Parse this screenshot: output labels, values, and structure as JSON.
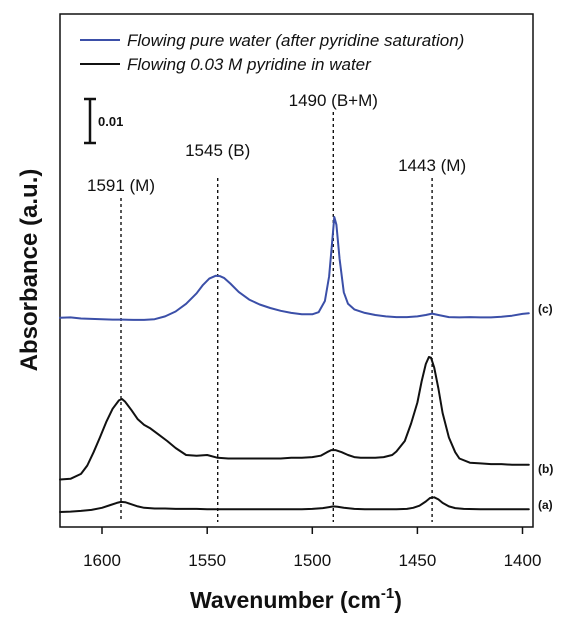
{
  "chart_data": {
    "type": "line",
    "xlabel": "Wavenumber (cm",
    "xlabel_sup": "-1",
    "xlabel_close": ")",
    "ylabel": "Absorbance (a.u.)",
    "xlim": [
      1620,
      1395
    ],
    "x_reversed": true,
    "x_ticks": [
      1600,
      1550,
      1500,
      1450,
      1400
    ],
    "y_ticks_shown": false,
    "grid": false,
    "legend_position": "top-left",
    "scale_bar_label": "0.01",
    "scale_bar_value": 0.01,
    "colors": {
      "c": "#3b4fa8",
      "b": "#111111",
      "a": "#111111"
    },
    "series": [
      {
        "name": "Flowing pure water (after pyridine saturation)",
        "curve_label": "(c)",
        "color": "#3b4fa8",
        "x": [
          1620,
          1615,
          1610,
          1605,
          1600,
          1595,
          1590,
          1585,
          1580,
          1575,
          1570,
          1565,
          1560,
          1555,
          1552,
          1549,
          1546,
          1544,
          1542,
          1539,
          1535,
          1530,
          1525,
          1520,
          1515,
          1510,
          1505,
          1500,
          1497,
          1494,
          1492,
          1490.5,
          1489.5,
          1488.5,
          1487,
          1485,
          1483,
          1480,
          1475,
          1470,
          1465,
          1460,
          1455,
          1450,
          1446,
          1443,
          1440,
          1435,
          1430,
          1425,
          1420,
          1415,
          1410,
          1405,
          1400,
          1397
        ],
        "y": [
          0.0012,
          0.0013,
          0.001,
          0.0009,
          0.0008,
          0.0007,
          0.0007,
          0.0006,
          0.0006,
          0.0008,
          0.0016,
          0.003,
          0.0052,
          0.0082,
          0.0106,
          0.0124,
          0.0132,
          0.0131,
          0.0126,
          0.011,
          0.0086,
          0.0064,
          0.005,
          0.004,
          0.0032,
          0.0026,
          0.0022,
          0.0022,
          0.0028,
          0.006,
          0.013,
          0.023,
          0.03,
          0.0278,
          0.018,
          0.0085,
          0.0052,
          0.0036,
          0.0026,
          0.002,
          0.0016,
          0.0014,
          0.0014,
          0.0016,
          0.002,
          0.0024,
          0.002,
          0.0014,
          0.0013,
          0.0014,
          0.0013,
          0.0013,
          0.0015,
          0.0018,
          0.0023,
          0.0025
        ]
      },
      {
        "name": "Flowing 0.03 M pyridine in water",
        "curve_label": "(b)",
        "color": "#111111",
        "x": [
          1620,
          1615,
          1610,
          1607,
          1604,
          1601,
          1598,
          1595,
          1592,
          1590.5,
          1589,
          1586,
          1583,
          1580,
          1577,
          1573,
          1569,
          1565,
          1560,
          1555,
          1550,
          1545,
          1540,
          1535,
          1530,
          1525,
          1520,
          1515,
          1510,
          1505,
          1500,
          1496,
          1493,
          1491,
          1489,
          1486,
          1483,
          1480,
          1477,
          1474,
          1470,
          1466,
          1462,
          1460,
          1456,
          1453,
          1450,
          1448,
          1446,
          1444.5,
          1443.5,
          1442,
          1440,
          1438,
          1435,
          1432,
          1430,
          1425,
          1420,
          1415,
          1410,
          1405,
          1400,
          1397
        ],
        "y": [
          0.005,
          0.0052,
          0.0066,
          0.009,
          0.0128,
          0.017,
          0.0214,
          0.0252,
          0.0276,
          0.028,
          0.0272,
          0.0248,
          0.0222,
          0.0206,
          0.0196,
          0.0178,
          0.016,
          0.014,
          0.012,
          0.0118,
          0.012,
          0.0112,
          0.011,
          0.011,
          0.011,
          0.011,
          0.011,
          0.011,
          0.0112,
          0.0112,
          0.0114,
          0.0118,
          0.0128,
          0.0134,
          0.0134,
          0.0128,
          0.012,
          0.0114,
          0.0112,
          0.0112,
          0.0112,
          0.0114,
          0.012,
          0.013,
          0.016,
          0.021,
          0.027,
          0.033,
          0.038,
          0.04,
          0.0398,
          0.037,
          0.031,
          0.024,
          0.017,
          0.0128,
          0.011,
          0.0098,
          0.0096,
          0.0094,
          0.0094,
          0.0092,
          0.0092,
          0.0092
        ]
      },
      {
        "name": "",
        "curve_label": "(a)",
        "color": "#111111",
        "x": [
          1620,
          1615,
          1610,
          1605,
          1600,
          1596,
          1593,
          1591,
          1589,
          1586,
          1583,
          1580,
          1575,
          1570,
          1565,
          1560,
          1555,
          1550,
          1545,
          1540,
          1535,
          1530,
          1525,
          1520,
          1515,
          1510,
          1505,
          1500,
          1495,
          1492,
          1490,
          1488,
          1485,
          1480,
          1475,
          1470,
          1465,
          1460,
          1455,
          1452,
          1449,
          1446,
          1444,
          1442,
          1440,
          1438,
          1435,
          1432,
          1428,
          1420,
          1410,
          1400,
          1397
        ],
        "y": [
          0.0,
          0.0001,
          0.0003,
          0.0006,
          0.0012,
          0.002,
          0.0026,
          0.0029,
          0.0028,
          0.0022,
          0.0016,
          0.0012,
          0.001,
          0.001,
          0.0009,
          0.0009,
          0.0009,
          0.0008,
          0.0008,
          0.0008,
          0.0008,
          0.0008,
          0.0008,
          0.0008,
          0.0008,
          0.0008,
          0.0008,
          0.0009,
          0.0011,
          0.0014,
          0.0016,
          0.0015,
          0.0012,
          0.0009,
          0.0008,
          0.0008,
          0.0008,
          0.0008,
          0.0009,
          0.0012,
          0.0018,
          0.003,
          0.004,
          0.0042,
          0.0036,
          0.0026,
          0.0016,
          0.0011,
          0.0009,
          0.0008,
          0.0008,
          0.0008,
          0.0008
        ]
      }
    ],
    "annotations": [
      {
        "label": "1591 (M)",
        "x": 1591
      },
      {
        "label": "1545 (B)",
        "x": 1545
      },
      {
        "label": "1490 (B+M)",
        "x": 1490
      },
      {
        "label": "1443 (M)",
        "x": 1443
      }
    ]
  }
}
